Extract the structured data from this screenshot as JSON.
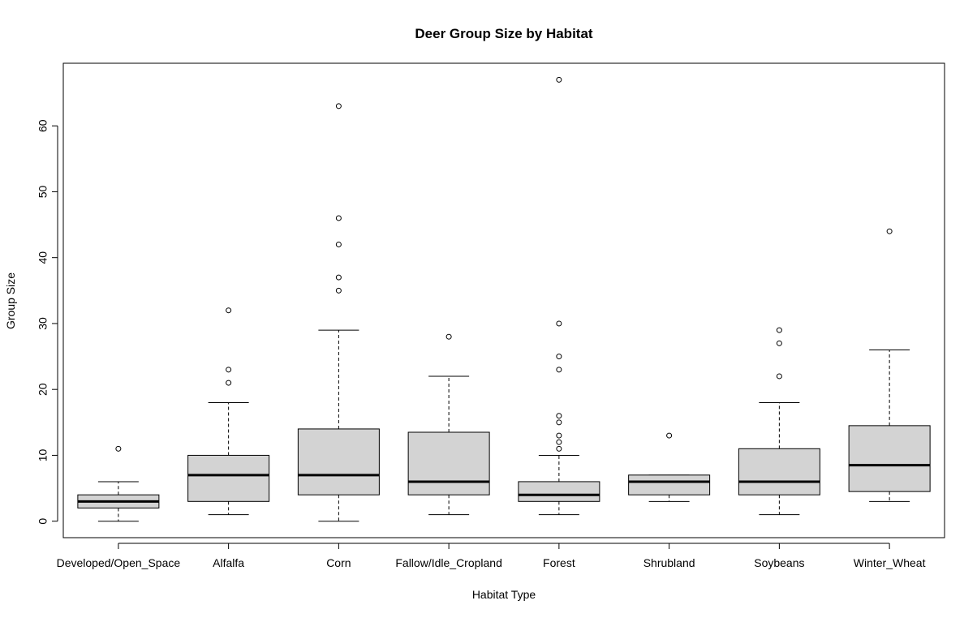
{
  "chart_data": {
    "type": "boxplot",
    "title": "Deer Group Size by Habitat",
    "xlabel": "Habitat Type",
    "ylabel": "Group Size",
    "ylim": [
      -2.5,
      69.5
    ],
    "yticks": [
      0,
      10,
      20,
      30,
      40,
      50,
      60
    ],
    "grid": false,
    "box_fill": "#d3d3d3",
    "categories": [
      "Developed/Open_Space",
      "Alfalfa",
      "Corn",
      "Fallow/Idle_Cropland",
      "Forest",
      "Shrubland",
      "Soybeans",
      "Winter_Wheat"
    ],
    "boxes": [
      {
        "category": "Developed/Open_Space",
        "whisker_low": 0,
        "q1": 2,
        "median": 3,
        "q3": 4,
        "whisker_high": 6,
        "outliers": [
          11
        ]
      },
      {
        "category": "Alfalfa",
        "whisker_low": 1,
        "q1": 3,
        "median": 7,
        "q3": 10,
        "whisker_high": 18,
        "outliers": [
          21,
          23,
          32
        ]
      },
      {
        "category": "Corn",
        "whisker_low": 0,
        "q1": 4,
        "median": 7,
        "q3": 14,
        "whisker_high": 29,
        "outliers": [
          35,
          37,
          42,
          46,
          63
        ]
      },
      {
        "category": "Fallow/Idle_Cropland",
        "whisker_low": 1,
        "q1": 4,
        "median": 6,
        "q3": 13.5,
        "whisker_high": 22,
        "outliers": [
          28
        ]
      },
      {
        "category": "Forest",
        "whisker_low": 1,
        "q1": 3,
        "median": 4,
        "q3": 6,
        "whisker_high": 10,
        "outliers": [
          11,
          12,
          13,
          15,
          16,
          23,
          25,
          30,
          67
        ]
      },
      {
        "category": "Shrubland",
        "whisker_low": 3,
        "q1": 4,
        "median": 6,
        "q3": 7,
        "whisker_high": 7,
        "outliers": [
          13
        ]
      },
      {
        "category": "Soybeans",
        "whisker_low": 1,
        "q1": 4,
        "median": 6,
        "q3": 11,
        "whisker_high": 18,
        "outliers": [
          22,
          27,
          29
        ]
      },
      {
        "category": "Winter_Wheat",
        "whisker_low": 3,
        "q1": 4.5,
        "median": 8.5,
        "q3": 14.5,
        "whisker_high": 26,
        "outliers": [
          44
        ]
      }
    ]
  }
}
